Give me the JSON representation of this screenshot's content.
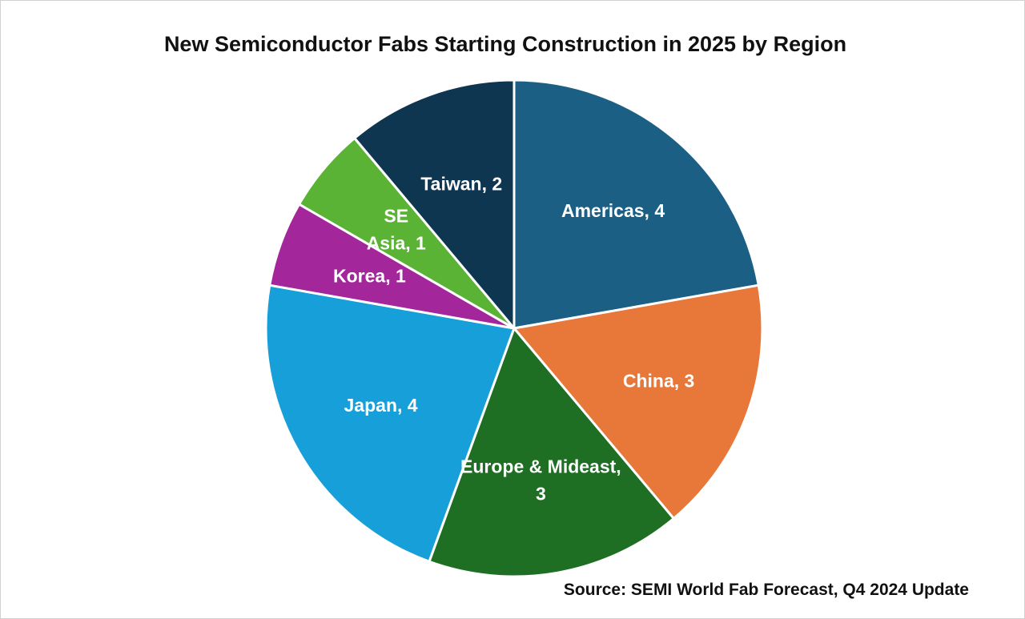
{
  "chart_data": {
    "type": "pie",
    "title": "New Semiconductor Fabs Starting Construction in 2025 by Region",
    "slices": [
      {
        "label": "Americas",
        "value": 4,
        "display_lines": [
          "Americas,  4"
        ],
        "color": "#1B5F85"
      },
      {
        "label": "China",
        "value": 3,
        "display_lines": [
          "China,  3"
        ],
        "color": "#E8773A"
      },
      {
        "label": "Europe & Mideast",
        "value": 3,
        "display_lines": [
          "Europe & Mideast,",
          "3"
        ],
        "color": "#1E6E23"
      },
      {
        "label": "Japan",
        "value": 4,
        "display_lines": [
          "Japan,  4"
        ],
        "color": "#169FD8"
      },
      {
        "label": "Korea",
        "value": 1,
        "display_lines": [
          "Korea,  1"
        ],
        "color": "#A3279B"
      },
      {
        "label": "SE Asia",
        "value": 1,
        "display_lines": [
          "SE",
          "Asia,  1"
        ],
        "color": "#5BB335"
      },
      {
        "label": "Taiwan",
        "value": 2,
        "display_lines": [
          "Taiwan,  2"
        ],
        "color": "#0F3650"
      }
    ],
    "legend": "none"
  },
  "source": "Source: SEMI World Fab Forecast, Q4 2024 Update"
}
